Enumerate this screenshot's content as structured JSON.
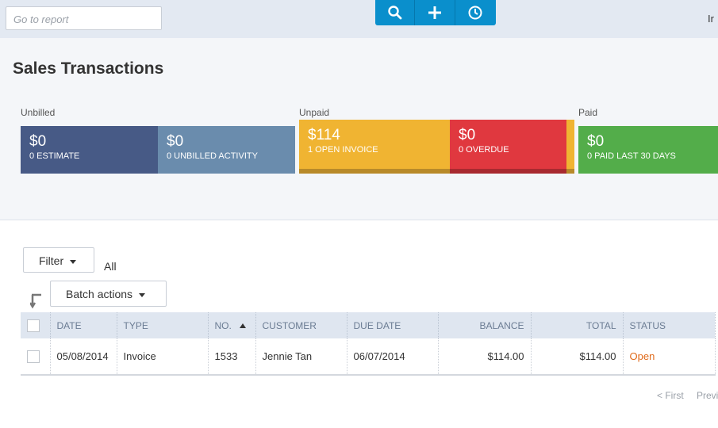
{
  "search": {
    "placeholder": "Go to report"
  },
  "toolbar": {
    "icons": [
      "search-icon",
      "plus-icon",
      "clock-icon"
    ]
  },
  "header": {
    "user_partial": "Ir"
  },
  "page": {
    "title": "Sales Transactions"
  },
  "summary": {
    "groups": {
      "unbilled": "Unbilled",
      "unpaid": "Unpaid",
      "paid": "Paid"
    },
    "tiles": {
      "estimate": {
        "amount": "$0",
        "label": "0 ESTIMATE",
        "color": "#475a86"
      },
      "unbilled": {
        "amount": "$0",
        "label": "0 UNBILLED ACTIVITY",
        "color": "#6a8cad"
      },
      "open_invoice": {
        "amount": "$114",
        "label": "1 OPEN INVOICE",
        "color": "#f0b432"
      },
      "overdue": {
        "amount": "$0",
        "label": "0 OVERDUE",
        "color": "#e0383f"
      },
      "paid": {
        "amount": "$0",
        "label": "0 PAID LAST 30 DAYS",
        "color": "#53ad4a"
      }
    }
  },
  "filters": {
    "filter_label": "Filter",
    "scope": "All",
    "batch_label": "Batch actions"
  },
  "table": {
    "columns": [
      "DATE",
      "TYPE",
      "NO.",
      "CUSTOMER",
      "DUE DATE",
      "BALANCE",
      "TOTAL",
      "STATUS"
    ],
    "rows": [
      {
        "date": "05/08/2014",
        "type": "Invoice",
        "no": "1533",
        "customer": "Jennie Tan",
        "due_date": "06/07/2014",
        "balance": "$114.00",
        "total": "$114.00",
        "status": "Open"
      }
    ]
  },
  "pager": {
    "first": "< First",
    "previous": "Previ"
  }
}
